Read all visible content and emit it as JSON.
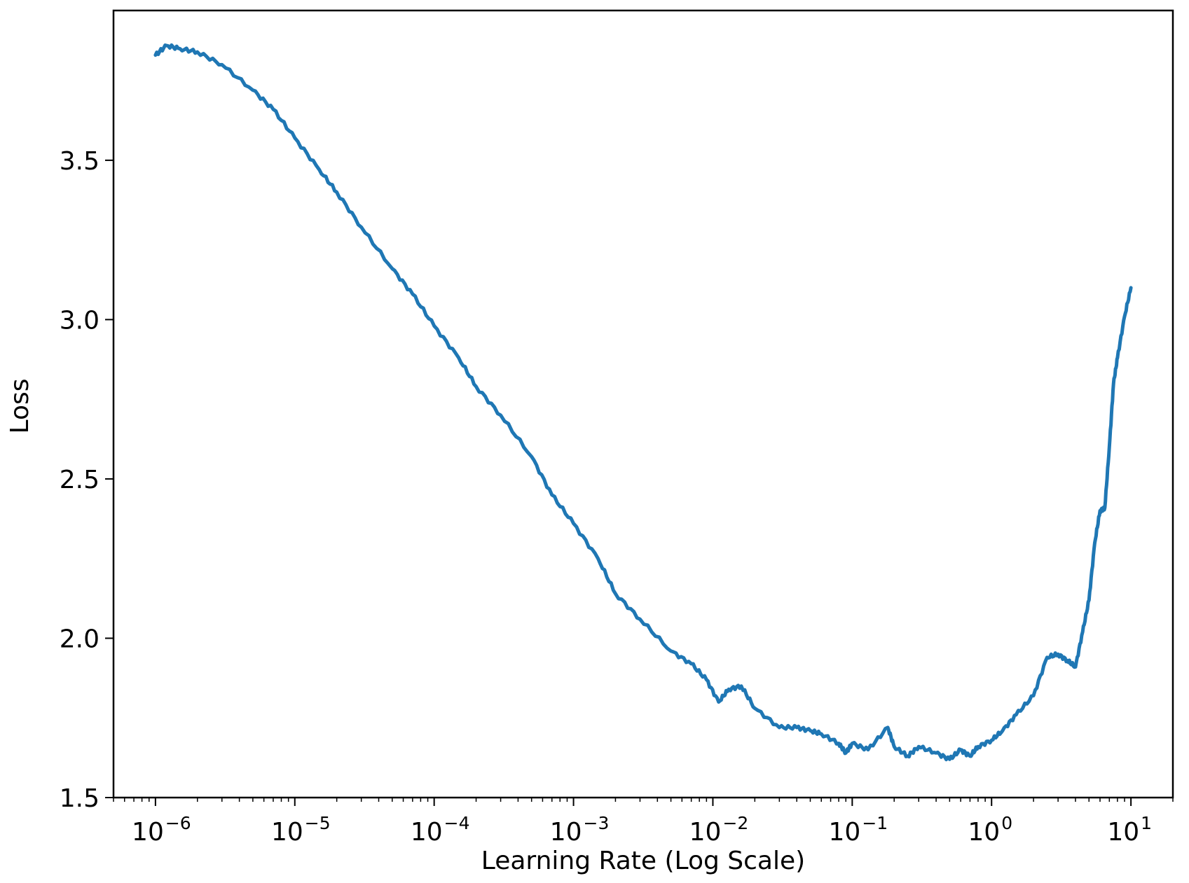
{
  "chart_data": {
    "type": "line",
    "title": "",
    "xlabel": "Learning Rate (Log Scale)",
    "ylabel": "Loss",
    "xscale": "log",
    "xlim": [
      5e-07,
      20
    ],
    "ylim": [
      1.5,
      3.97
    ],
    "grid": false,
    "line_color": "#1f77b4",
    "x_ticks": [
      {
        "value": 1e-06,
        "base": "10",
        "exp": "−6"
      },
      {
        "value": 1e-05,
        "base": "10",
        "exp": "−5"
      },
      {
        "value": 0.0001,
        "base": "10",
        "exp": "−4"
      },
      {
        "value": 0.001,
        "base": "10",
        "exp": "−3"
      },
      {
        "value": 0.01,
        "base": "10",
        "exp": "−2"
      },
      {
        "value": 0.1,
        "base": "10",
        "exp": "−1"
      },
      {
        "value": 1,
        "base": "10",
        "exp": "0"
      },
      {
        "value": 10,
        "base": "10",
        "exp": "1"
      }
    ],
    "y_ticks": [
      {
        "value": 1.5,
        "label": "1.5"
      },
      {
        "value": 2.0,
        "label": "2.0"
      },
      {
        "value": 2.5,
        "label": "2.5"
      },
      {
        "value": 3.0,
        "label": "3.0"
      },
      {
        "value": 3.5,
        "label": "3.5"
      }
    ],
    "series": [
      {
        "x": [
          1e-06,
          1.2e-06,
          1.5e-06,
          2e-06,
          3e-06,
          5e-06,
          7e-06,
          1e-05,
          1.5e-05,
          2e-05,
          3e-05,
          5e-05,
          7e-05,
          0.0001,
          0.00015,
          0.0002,
          0.0003,
          0.0005,
          0.0007,
          0.001,
          0.0015,
          0.002,
          0.003,
          0.005,
          0.007,
          0.009,
          0.011,
          0.013,
          0.016,
          0.02,
          0.03,
          0.04,
          0.05,
          0.06,
          0.08,
          0.09,
          0.1,
          0.13,
          0.18,
          0.2,
          0.25,
          0.3,
          0.4,
          0.5,
          0.6,
          0.7,
          0.8,
          1.0,
          1.2,
          1.5,
          2.0,
          2.5,
          3.0,
          3.5,
          4.0,
          4.5,
          5.0,
          5.5,
          6.0,
          6.5,
          7.0,
          7.5,
          8.0,
          9.0,
          10.0
        ],
        "y": [
          3.83,
          3.86,
          3.85,
          3.84,
          3.8,
          3.72,
          3.66,
          3.57,
          3.47,
          3.4,
          3.29,
          3.16,
          3.08,
          2.98,
          2.88,
          2.79,
          2.7,
          2.57,
          2.45,
          2.36,
          2.25,
          2.14,
          2.06,
          1.96,
          1.92,
          1.87,
          1.8,
          1.84,
          1.85,
          1.78,
          1.72,
          1.72,
          1.71,
          1.7,
          1.67,
          1.64,
          1.67,
          1.65,
          1.72,
          1.66,
          1.63,
          1.66,
          1.64,
          1.62,
          1.65,
          1.63,
          1.66,
          1.68,
          1.71,
          1.76,
          1.82,
          1.94,
          1.95,
          1.93,
          1.91,
          2.02,
          2.12,
          2.3,
          2.4,
          2.41,
          2.6,
          2.8,
          2.88,
          3.01,
          3.1
        ]
      }
    ]
  }
}
